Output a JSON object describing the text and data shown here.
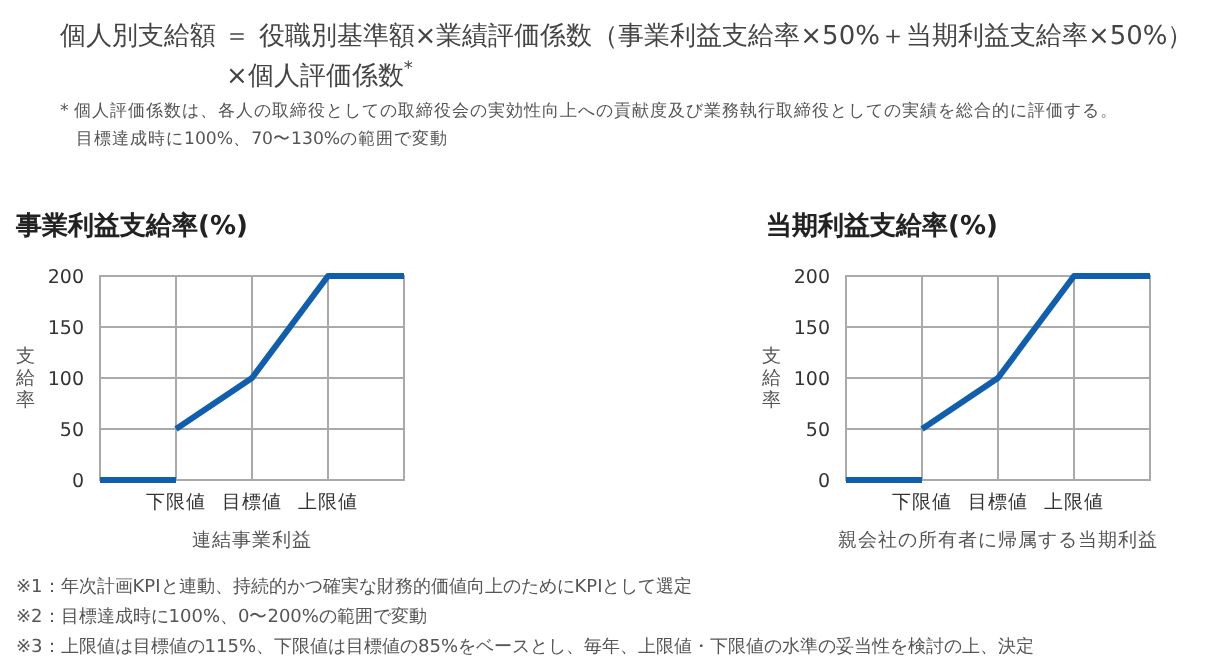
{
  "chart_data": [
    {
      "type": "line",
      "title": "事業利益支給率(%)",
      "xlabel": "連結事業利益",
      "ylabel": "支給率",
      "annotations": [
        "個人別支給額 ＝ 役職別基準額×業績評価係数（事業利益支給率×50%＋当期利益支給率×50%）",
        "×個人評価係数$^{*}$",
        "* 個人評価係数は、各人の取締役としての取締役会の実効性向上への貢献度及び業務執行取締役としての実績を総合的に評価する。",
        "目標達成時に100%、70〜130%の範囲で変動"
      ],
      "categories": [
        null,
        "下限値",
        "目標値",
        "上限値",
        null
      ],
      "series": [
        {
          "color": "#0f5fae",
          "values": [
            0,
            0,
            null,
            null,
            null
          ]
        },
        {
          "color": "#0f5fae",
          "values": [
            null,
            50,
            100,
            200,
            200
          ]
        }
      ],
      "ylim": [
        0,
        200
      ],
      "yticks": [
        0,
        50,
        100,
        150,
        200
      ],
      "grid": true
    },
    {
      "type": "line",
      "title": "当期利益支給率(%)",
      "xlabel": "親会社の所有者に帰属する当期利益",
      "ylabel": "支給率",
      "annotations": [
        "※1：年次計画KPIと連動、持続的かつ確実な財務的価値向上のためにKPIとして選定",
        "※2：目標達成時に100%、0〜200%の範囲で変動",
        "※3：上限値は目標値の115%、下限値は目標値の85%をベースとし、毎年、上限値・下限値の水準の妥当性を検討の上、決定"
      ],
      "categories": [
        null,
        "下限値",
        "目標値",
        "上限値",
        null
      ],
      "series": [
        {
          "color": "#0f5fae",
          "values": [
            0,
            0,
            null,
            null,
            null
          ]
        },
        {
          "color": "#0f5fae",
          "values": [
            null,
            50,
            100,
            200,
            200
          ]
        }
      ],
      "ylim": [
        0,
        200
      ],
      "yticks": [
        0,
        50,
        100,
        150,
        200
      ],
      "grid": true
    }
  ]
}
